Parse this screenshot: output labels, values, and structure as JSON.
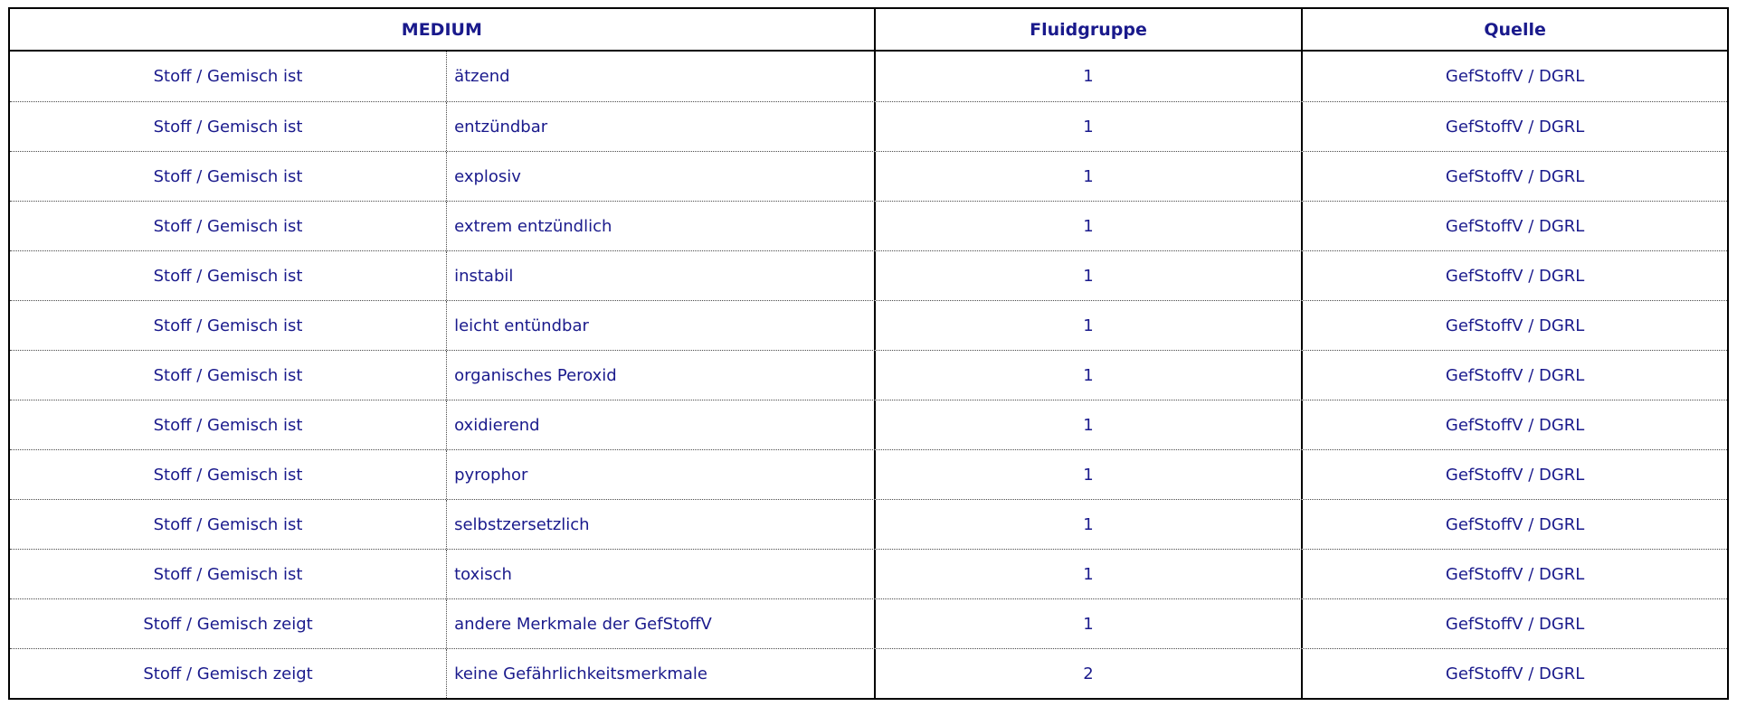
{
  "colors": {
    "text": "#1a1a8c",
    "border": "#000000",
    "background": "#ffffff"
  },
  "table": {
    "headers": {
      "medium": "MEDIUM",
      "fluidgruppe": "Fluidgruppe",
      "quelle": "Quelle"
    },
    "rows": [
      {
        "subject": "Stoff / Gemisch ist",
        "property": "ätzend",
        "fluidgruppe": "1",
        "quelle": "GefStoffV / DGRL"
      },
      {
        "subject": "Stoff / Gemisch ist",
        "property": "entzündbar",
        "fluidgruppe": "1",
        "quelle": "GefStoffV / DGRL"
      },
      {
        "subject": "Stoff / Gemisch ist",
        "property": "explosiv",
        "fluidgruppe": "1",
        "quelle": "GefStoffV / DGRL"
      },
      {
        "subject": "Stoff / Gemisch ist",
        "property": "extrem entzündlich",
        "fluidgruppe": "1",
        "quelle": "GefStoffV / DGRL"
      },
      {
        "subject": "Stoff / Gemisch ist",
        "property": "instabil",
        "fluidgruppe": "1",
        "quelle": "GefStoffV / DGRL"
      },
      {
        "subject": "Stoff / Gemisch ist",
        "property": "leicht entündbar",
        "fluidgruppe": "1",
        "quelle": "GefStoffV / DGRL"
      },
      {
        "subject": "Stoff / Gemisch ist",
        "property": "organisches Peroxid",
        "fluidgruppe": "1",
        "quelle": "GefStoffV / DGRL"
      },
      {
        "subject": "Stoff / Gemisch ist",
        "property": "oxidierend",
        "fluidgruppe": "1",
        "quelle": "GefStoffV / DGRL"
      },
      {
        "subject": "Stoff / Gemisch ist",
        "property": "pyrophor",
        "fluidgruppe": "1",
        "quelle": "GefStoffV / DGRL"
      },
      {
        "subject": "Stoff / Gemisch ist",
        "property": "selbstzersetzlich",
        "fluidgruppe": "1",
        "quelle": "GefStoffV / DGRL"
      },
      {
        "subject": "Stoff / Gemisch ist",
        "property": "toxisch",
        "fluidgruppe": "1",
        "quelle": "GefStoffV / DGRL"
      },
      {
        "subject": "Stoff / Gemisch zeigt",
        "property": "andere Merkmale der GefStoffV",
        "fluidgruppe": "1",
        "quelle": "GefStoffV / DGRL"
      },
      {
        "subject": "Stoff / Gemisch zeigt",
        "property": "keine Gefährlichkeitsmerkmale",
        "fluidgruppe": "2",
        "quelle": "GefStoffV / DGRL"
      }
    ]
  }
}
